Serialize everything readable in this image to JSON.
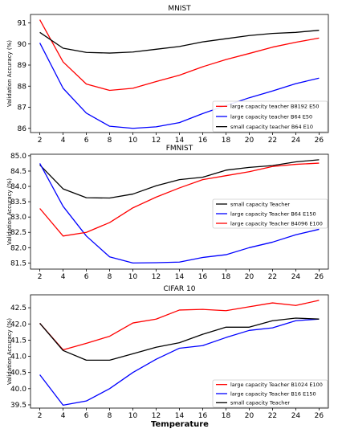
{
  "xlabel": "Temperature",
  "chart_data": [
    {
      "type": "line",
      "title": "MNIST",
      "ylabel": "Validation Accuracy (%)",
      "xlim": [
        1.2,
        26.8
      ],
      "ylim": [
        85.8,
        91.4
      ],
      "xticks": [
        2,
        4,
        6,
        8,
        10,
        12,
        14,
        16,
        18,
        20,
        22,
        24,
        26
      ],
      "yticks": [
        86,
        87,
        88,
        89,
        90,
        91
      ],
      "legend_position": "lower-right",
      "x": [
        2,
        4,
        6,
        8,
        10,
        12,
        14,
        16,
        18,
        20,
        22,
        24,
        26
      ],
      "series": [
        {
          "name": "large capacity teacher B8192 E50",
          "color": "#ff0000",
          "values": [
            91.15,
            89.15,
            88.1,
            87.8,
            87.9,
            88.22,
            88.52,
            88.92,
            89.26,
            89.55,
            89.85,
            90.08,
            90.28
          ]
        },
        {
          "name": "large capacity teacher B64 E50",
          "color": "#0000ff",
          "values": [
            90.05,
            87.9,
            86.72,
            86.1,
            86.0,
            86.07,
            86.27,
            86.7,
            87.08,
            87.45,
            87.77,
            88.12,
            88.38
          ]
        },
        {
          "name": "small capacity teacher B64 E10",
          "color": "#000000",
          "values": [
            90.55,
            89.8,
            89.6,
            89.57,
            89.62,
            89.75,
            89.88,
            90.1,
            90.25,
            90.4,
            90.5,
            90.55,
            90.65
          ]
        }
      ]
    },
    {
      "type": "line",
      "title": "FMNIST",
      "ylabel": "Validation Accuracy (%)",
      "xlim": [
        1.2,
        26.8
      ],
      "ylim": [
        81.3,
        85.05
      ],
      "xticks": [
        2,
        4,
        6,
        8,
        10,
        12,
        14,
        16,
        18,
        20,
        22,
        24,
        26
      ],
      "yticks": [
        81.5,
        82.0,
        82.5,
        83.0,
        83.5,
        84.0,
        84.5,
        85.0
      ],
      "ytick_labels": [
        "81.5",
        "82.0",
        "82.5",
        "83.0",
        "83.5",
        "84.0",
        "84.5",
        "85.0"
      ],
      "legend_position": "center-right",
      "x": [
        2,
        4,
        6,
        8,
        10,
        12,
        14,
        16,
        18,
        20,
        22,
        24,
        26
      ],
      "series": [
        {
          "name": "small capacity Teacher",
          "color": "#000000",
          "values": [
            84.7,
            83.92,
            83.63,
            83.62,
            83.75,
            84.02,
            84.22,
            84.3,
            84.53,
            84.62,
            84.68,
            84.8,
            84.87
          ]
        },
        {
          "name": "large capacity Teacher B64 E150",
          "color": "#0000ff",
          "values": [
            84.75,
            83.35,
            82.38,
            81.7,
            81.5,
            81.51,
            81.53,
            81.68,
            81.77,
            82.0,
            82.18,
            82.42,
            82.6
          ]
        },
        {
          "name": "large capacity Teacher B4096 E100",
          "color": "#ff0000",
          "values": [
            83.28,
            82.38,
            82.5,
            82.82,
            83.3,
            83.65,
            83.95,
            84.22,
            84.35,
            84.48,
            84.65,
            84.72,
            84.76
          ]
        }
      ]
    },
    {
      "type": "line",
      "title": "CIFAR 10",
      "ylabel": "Validation Accuracy (%)",
      "xlim": [
        1.2,
        26.8
      ],
      "ylim": [
        39.4,
        42.9
      ],
      "xticks": [
        2,
        4,
        6,
        8,
        10,
        12,
        14,
        16,
        18,
        20,
        22,
        24,
        26
      ],
      "yticks": [
        39.5,
        40.0,
        40.5,
        41.0,
        41.5,
        42.0,
        42.5
      ],
      "ytick_labels": [
        "39.5",
        "40.0",
        "40.5",
        "41.0",
        "41.5",
        "42.0",
        "42.5"
      ],
      "legend_position": "lower-right",
      "x": [
        2,
        4,
        6,
        8,
        10,
        12,
        14,
        16,
        18,
        20,
        22,
        24,
        26
      ],
      "series": [
        {
          "name": "large capacity Teacher B1024 E100",
          "color": "#ff0000",
          "values": [
            42.02,
            41.2,
            41.4,
            41.62,
            42.03,
            42.15,
            42.43,
            42.45,
            42.41,
            42.53,
            42.65,
            42.57,
            42.73
          ]
        },
        {
          "name": "large capacity Teacher B16 E150",
          "color": "#0000ff",
          "values": [
            40.43,
            39.49,
            39.62,
            40.0,
            40.5,
            40.91,
            41.25,
            41.33,
            41.58,
            41.8,
            41.88,
            42.1,
            42.15
          ]
        },
        {
          "name": "small capacity Teacher",
          "color": "#000000",
          "values": [
            42.02,
            41.18,
            40.88,
            40.88,
            41.08,
            41.28,
            41.42,
            41.68,
            41.9,
            41.9,
            42.1,
            42.18,
            42.15
          ]
        }
      ]
    }
  ]
}
